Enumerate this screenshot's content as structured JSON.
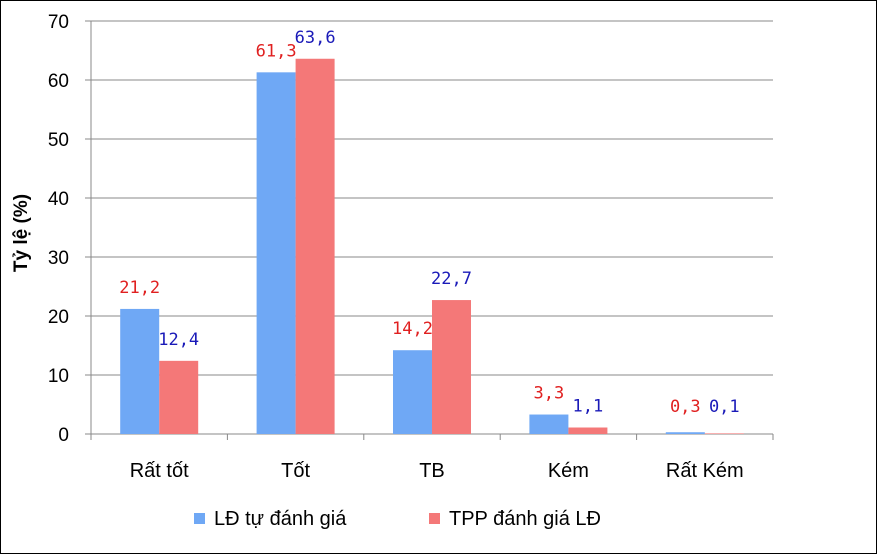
{
  "chart_data": {
    "type": "bar",
    "categories": [
      "Rất tốt",
      "Tốt",
      "TB",
      "Kém",
      "Rất Kém"
    ],
    "series": [
      {
        "name": "LĐ tự đánh giá",
        "color": "#6fa8f5",
        "label_color": "#e02020",
        "values": [
          21.2,
          61.3,
          14.2,
          3.3,
          0.3
        ],
        "labels": [
          "21,2",
          "61,3",
          "14,2",
          "3,3",
          "0,3"
        ]
      },
      {
        "name": "TPP đánh giá LĐ",
        "color": "#f47878",
        "label_color": "#1a1ab8",
        "values": [
          12.4,
          63.6,
          22.7,
          1.1,
          0.1
        ],
        "labels": [
          "12,4",
          "63,6",
          "22,7",
          "1,1",
          "0,1"
        ]
      }
    ],
    "title": "",
    "xlabel": "",
    "ylabel": "Tỷ lệ (%)",
    "ylim": [
      0,
      70
    ],
    "yticks": [
      0,
      10,
      20,
      30,
      40,
      50,
      60,
      70
    ],
    "grid": true,
    "legend_position": "bottom"
  }
}
